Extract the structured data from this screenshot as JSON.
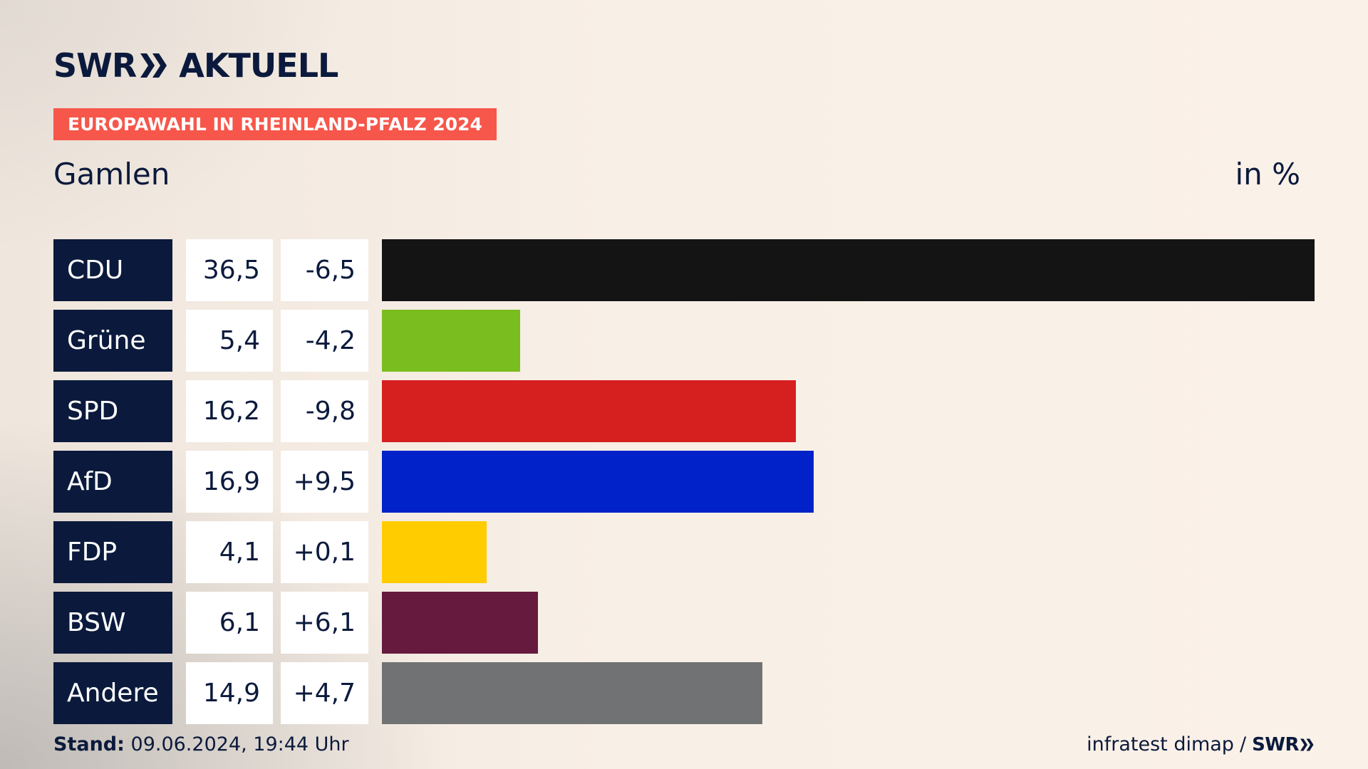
{
  "header": {
    "logo_swr": "SWR",
    "logo_aktuell": "AKTUELL",
    "badge": "EUROPAWAHL IN RHEINLAND-PFALZ 2024",
    "location": "Gamlen",
    "unit": "in %"
  },
  "colors": {
    "navy": "#0b1a3c",
    "badge": "#f7564a"
  },
  "chart_data": {
    "type": "bar",
    "orientation": "horizontal",
    "categories": [
      "CDU",
      "Grüne",
      "SPD",
      "AfD",
      "FDP",
      "BSW",
      "Andere"
    ],
    "values": [
      36.5,
      5.4,
      16.2,
      16.9,
      4.1,
      6.1,
      14.9
    ],
    "value_labels": [
      "36,5",
      "5,4",
      "16,2",
      "16,9",
      "4,1",
      "6,1",
      "14,9"
    ],
    "changes": [
      -6.5,
      -4.2,
      -9.8,
      9.5,
      0.1,
      6.1,
      4.7
    ],
    "change_labels": [
      "-6,5",
      "-4,2",
      "-9,8",
      "+9,5",
      "+0,1",
      "+6,1",
      "+4,7"
    ],
    "bar_colors": [
      "#141414",
      "#7abd1e",
      "#d61f1f",
      "#0022c8",
      "#ffcc00",
      "#661a3e",
      "#717273"
    ],
    "unit": "in %"
  },
  "footer": {
    "stand_label": "Stand:",
    "stand_value": "09.06.2024, 19:44 Uhr",
    "source": "infratest dimap",
    "separator": "/",
    "swr": "SWR"
  }
}
